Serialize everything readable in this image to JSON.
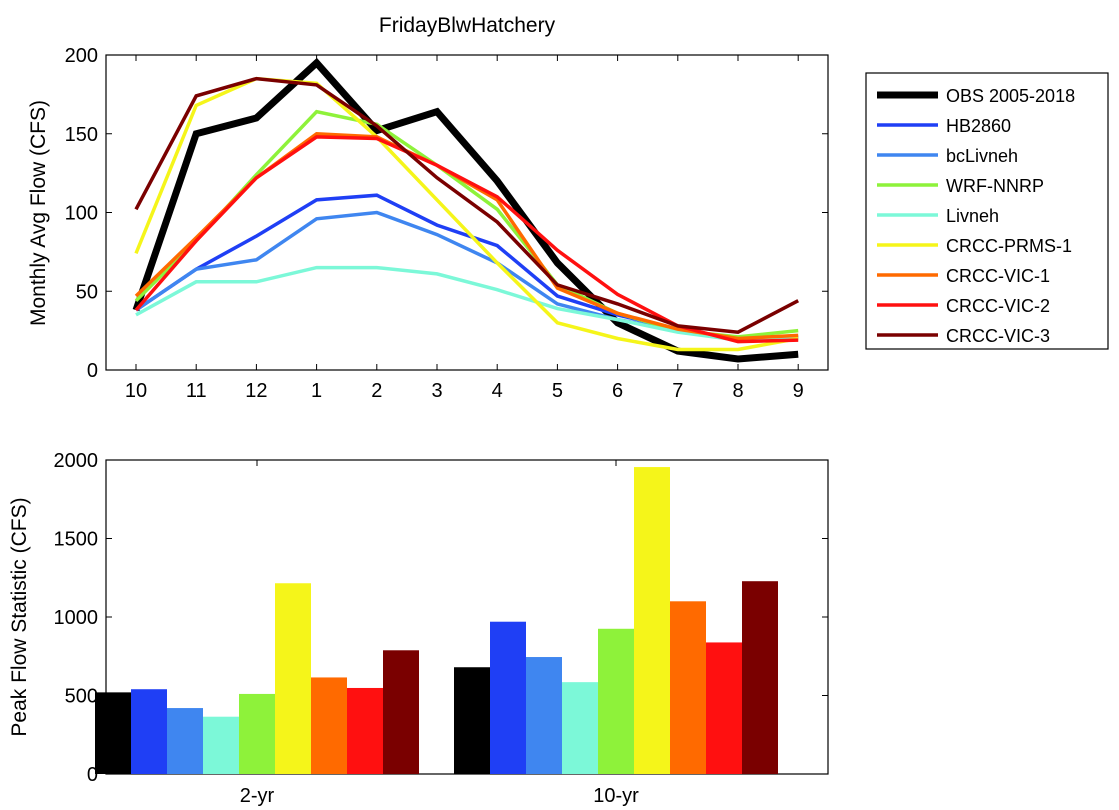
{
  "chart_data": [
    {
      "type": "line",
      "title": "FridayBlwHatchery",
      "xlabel": "",
      "ylabel": "Monthly Avg Flow (CFS)",
      "categories": [
        "10",
        "11",
        "12",
        "1",
        "2",
        "3",
        "4",
        "5",
        "6",
        "7",
        "8",
        "9"
      ],
      "ylim": [
        0,
        200
      ],
      "yticks": [
        "0",
        "50",
        "100",
        "150",
        "200"
      ],
      "legend_position": "outside-right",
      "series": [
        {
          "name": "OBS 2005-2018",
          "color": "#000000",
          "values": [
            38,
            150,
            160,
            195,
            152,
            164,
            120,
            68,
            30,
            12,
            7,
            10
          ]
        },
        {
          "name": "HB2860",
          "color": "#1f3ff5",
          "values": [
            38,
            64,
            85,
            108,
            111,
            92,
            79,
            47,
            35,
            26,
            19,
            21
          ]
        },
        {
          "name": "bcLivneh",
          "color": "#3f86f0",
          "values": [
            38,
            64,
            70,
            96,
            100,
            86,
            68,
            42,
            32,
            25,
            19,
            20
          ]
        },
        {
          "name": "WRF-NNRP",
          "color": "#8ef23a",
          "values": [
            44,
            82,
            124,
            164,
            156,
            130,
            102,
            54,
            36,
            25,
            21,
            25
          ]
        },
        {
          "name": "Livneh",
          "color": "#7cf8d8",
          "values": [
            35,
            56,
            56,
            65,
            65,
            61,
            51,
            39,
            32,
            24,
            19,
            21
          ]
        },
        {
          "name": "CRCC-PRMS-1",
          "color": "#f5f51a",
          "values": [
            74,
            168,
            185,
            182,
            148,
            108,
            68,
            30,
            20,
            13,
            13,
            20
          ]
        },
        {
          "name": "CRCC-VIC-1",
          "color": "#ff6a00",
          "values": [
            47,
            84,
            122,
            150,
            148,
            130,
            108,
            52,
            36,
            26,
            20,
            22
          ]
        },
        {
          "name": "CRCC-VIC-2",
          "color": "#ff1010",
          "values": [
            38,
            82,
            122,
            148,
            147,
            130,
            110,
            76,
            48,
            28,
            18,
            19
          ]
        },
        {
          "name": "CRCC-VIC-3",
          "color": "#7a0000",
          "values": [
            102,
            174,
            185,
            181,
            155,
            122,
            94,
            54,
            42,
            28,
            24,
            44
          ]
        }
      ]
    },
    {
      "type": "bar",
      "title": "",
      "xlabel": "",
      "ylabel": "Peak Flow Statistic (CFS)",
      "categories": [
        "2-yr",
        "10-yr"
      ],
      "ylim": [
        0,
        2000
      ],
      "yticks": [
        "0",
        "500",
        "1000",
        "1500",
        "2000"
      ],
      "series": [
        {
          "name": "OBS 2005-2018",
          "color": "#000000",
          "values": [
            520,
            680
          ]
        },
        {
          "name": "HB2860",
          "color": "#1f3ff5",
          "values": [
            540,
            970
          ]
        },
        {
          "name": "bcLivneh",
          "color": "#3f86f0",
          "values": [
            420,
            745
          ]
        },
        {
          "name": "Livneh",
          "color": "#7cf8d8",
          "values": [
            365,
            585
          ]
        },
        {
          "name": "WRF-NNRP",
          "color": "#8ef23a",
          "values": [
            510,
            925
          ]
        },
        {
          "name": "CRCC-PRMS-1",
          "color": "#f5f51a",
          "values": [
            1215,
            1955
          ]
        },
        {
          "name": "CRCC-VIC-1",
          "color": "#ff6a00",
          "values": [
            615,
            1100
          ]
        },
        {
          "name": "CRCC-VIC-2",
          "color": "#ff1010",
          "values": [
            548,
            838
          ]
        },
        {
          "name": "CRCC-VIC-3",
          "color": "#7a0000",
          "values": [
            788,
            1228
          ]
        }
      ]
    }
  ]
}
